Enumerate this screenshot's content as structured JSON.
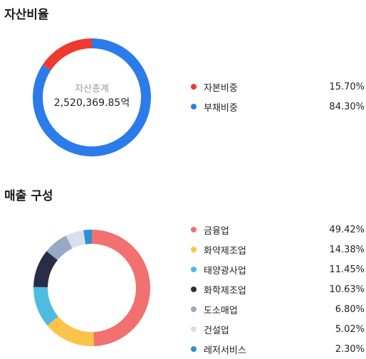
{
  "sections": {
    "asset_title": "자산비율",
    "sales_title": "매출 구성"
  },
  "asset_center": {
    "label": "자산총계",
    "value": "2,520,369.85억"
  },
  "chart_data": [
    {
      "type": "pie",
      "title": "자산비율",
      "legend_position": "right",
      "categories": [
        "자본비중",
        "부채비중"
      ],
      "values": [
        15.7,
        84.3
      ],
      "value_labels": [
        "15.70%",
        "84.30%"
      ],
      "colors": [
        "#EE3A2F",
        "#2B7BEA"
      ]
    },
    {
      "type": "pie",
      "title": "매출 구성",
      "legend_position": "right",
      "categories": [
        "금융업",
        "화약제조업",
        "태양광사업",
        "화학제조업",
        "도소매업",
        "건설업",
        "레저서비스"
      ],
      "values": [
        49.42,
        14.38,
        11.45,
        10.63,
        6.8,
        5.02,
        2.3
      ],
      "value_labels": [
        "49.42%",
        "14.38%",
        "11.45%",
        "10.63%",
        "6.80%",
        "5.02%",
        "2.30%"
      ],
      "colors": [
        "#F2706F",
        "#FCC34A",
        "#4DBCE0",
        "#2B2D47",
        "#97A9C4",
        "#D7E0EA",
        "#2E8FD6"
      ]
    }
  ]
}
